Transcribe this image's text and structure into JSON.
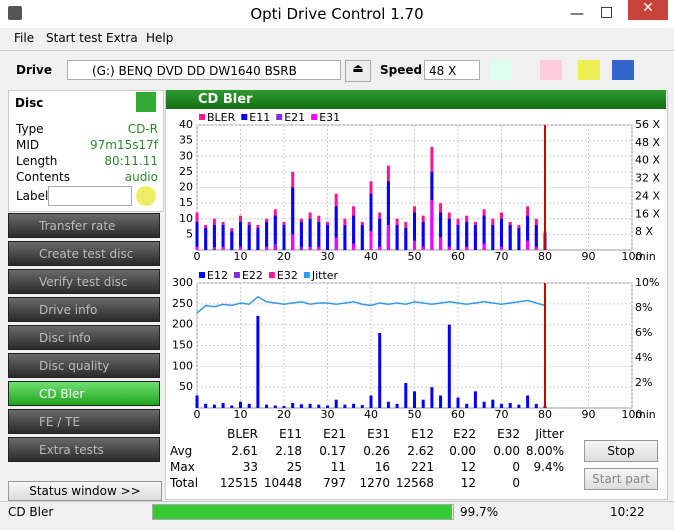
{
  "window": {
    "title": "Opti Drive Control 1.70"
  },
  "menu": [
    "File",
    "Start test",
    "Extra",
    "Help"
  ],
  "toolbar": {
    "drive_label": "Drive",
    "drive": "(G:)  BENQ DVD DD DW1640 BSRB",
    "speed_label": "Speed",
    "speed": "48 X"
  },
  "disc": {
    "title": "Disc",
    "fields": [
      [
        "Type",
        "CD-R"
      ],
      [
        "MID",
        "97m15s17f"
      ],
      [
        "Length",
        "80:11.11"
      ],
      [
        "Contents",
        "audio"
      ]
    ],
    "label_field": "Label"
  },
  "nav": [
    "Transfer rate",
    "Create test disc",
    "Verify test disc",
    "Drive info",
    "Disc info",
    "Disc quality",
    "CD Bler",
    "FE / TE",
    "Extra tests"
  ],
  "active_nav": 6,
  "status_window_button": "Status window >>",
  "panel_title": "CD Bler",
  "chart_data": [
    {
      "type": "bar",
      "x": [
        0,
        2,
        4,
        6,
        8,
        10,
        12,
        14,
        16,
        18,
        20,
        22,
        24,
        26,
        28,
        30,
        32,
        34,
        36,
        38,
        40,
        42,
        44,
        46,
        48,
        50,
        52,
        54,
        56,
        58,
        60,
        62,
        64,
        66,
        68,
        70,
        72,
        74,
        76,
        78,
        80
      ],
      "xlim": [
        0,
        100
      ],
      "xticks": [
        0,
        10,
        20,
        30,
        40,
        50,
        60,
        70,
        80,
        90,
        100
      ],
      "xlabel": "min",
      "ylim": [
        0,
        40
      ],
      "yticks": [
        5,
        10,
        15,
        20,
        25,
        30,
        35,
        40
      ],
      "y2lim": [
        0,
        56
      ],
      "y2ticks": [
        {
          "value": 8,
          "label": "8 X"
        },
        {
          "value": 16,
          "label": "16 X"
        },
        {
          "value": 24,
          "label": "24 X"
        },
        {
          "value": 32,
          "label": "32 X"
        },
        {
          "value": 40,
          "label": "40 X"
        },
        {
          "value": 48,
          "label": "48 X"
        },
        {
          "value": 56,
          "label": "56 X"
        }
      ],
      "grid": true,
      "progress_x": 80,
      "series": [
        {
          "name": "BLER",
          "color": "#ff1493",
          "values": [
            12,
            8,
            10,
            9,
            7,
            11,
            9,
            8,
            10,
            13,
            9,
            25,
            10,
            12,
            11,
            9,
            18,
            10,
            14,
            9,
            22,
            12,
            27,
            10,
            9,
            14,
            11,
            33,
            15,
            12,
            10,
            11,
            9,
            13,
            10,
            12,
            9,
            8,
            14,
            10,
            6
          ]
        },
        {
          "name": "E11",
          "color": "#0000ff",
          "values": [
            9,
            7,
            8,
            8,
            6,
            9,
            8,
            7,
            9,
            11,
            8,
            20,
            9,
            10,
            9,
            8,
            14,
            8,
            11,
            8,
            18,
            10,
            22,
            8,
            7,
            12,
            9,
            25,
            12,
            10,
            8,
            9,
            8,
            11,
            8,
            10,
            8,
            7,
            11,
            8,
            5
          ]
        },
        {
          "name": "E21",
          "color": "#8a2be2",
          "values": [
            1,
            0,
            1,
            0,
            0,
            1,
            0,
            0,
            1,
            2,
            0,
            4,
            1,
            1,
            0,
            0,
            3,
            0,
            2,
            0,
            5,
            1,
            6,
            0,
            0,
            2,
            1,
            11,
            3,
            1,
            0,
            1,
            0,
            2,
            0,
            1,
            0,
            0,
            2,
            1,
            0
          ]
        },
        {
          "name": "E31",
          "color": "#ff00ff",
          "values": [
            1,
            0,
            0,
            1,
            0,
            1,
            0,
            0,
            1,
            1,
            0,
            5,
            0,
            1,
            1,
            0,
            4,
            0,
            2,
            0,
            6,
            1,
            8,
            0,
            0,
            3,
            1,
            16,
            4,
            1,
            0,
            1,
            0,
            2,
            0,
            1,
            0,
            0,
            3,
            1,
            0
          ]
        }
      ]
    },
    {
      "type": "bar",
      "x": [
        0,
        2,
        4,
        6,
        8,
        10,
        12,
        14,
        16,
        18,
        20,
        22,
        24,
        26,
        28,
        30,
        32,
        34,
        36,
        38,
        40,
        42,
        44,
        46,
        48,
        50,
        52,
        54,
        56,
        58,
        60,
        62,
        64,
        66,
        68,
        70,
        72,
        74,
        76,
        78,
        80
      ],
      "xlim": [
        0,
        100
      ],
      "xticks": [
        0,
        10,
        20,
        30,
        40,
        50,
        60,
        70,
        80,
        90,
        100
      ],
      "xlabel": "min",
      "ylim": [
        0,
        300
      ],
      "yticks": [
        50,
        100,
        150,
        200,
        250,
        300
      ],
      "y2lim": [
        0,
        10
      ],
      "y2ticks": [
        {
          "value": 2,
          "label": "2%"
        },
        {
          "value": 4,
          "label": "4%"
        },
        {
          "value": 6,
          "label": "6%"
        },
        {
          "value": 8,
          "label": "8%"
        },
        {
          "value": 10,
          "label": "10%"
        }
      ],
      "grid": true,
      "progress_x": 80,
      "series": [
        {
          "name": "E12",
          "color": "#0000ff",
          "values": [
            30,
            10,
            8,
            12,
            6,
            15,
            10,
            221,
            8,
            6,
            5,
            12,
            9,
            10,
            8,
            6,
            20,
            8,
            10,
            7,
            30,
            180,
            15,
            10,
            60,
            40,
            20,
            50,
            30,
            200,
            25,
            10,
            40,
            15,
            20,
            10,
            12,
            8,
            30,
            10,
            5
          ]
        },
        {
          "name": "E22",
          "color": "#8a2be2",
          "values": [
            0,
            0,
            0,
            0,
            0,
            0,
            0,
            0,
            0,
            0,
            0,
            0,
            0,
            0,
            0,
            0,
            0,
            0,
            0,
            0,
            0,
            0,
            0,
            0,
            0,
            0,
            0,
            0,
            0,
            0,
            0,
            0,
            0,
            0,
            0,
            0,
            0,
            0,
            0,
            0,
            0
          ]
        },
        {
          "name": "E32",
          "color": "#ff1493",
          "values": [
            0,
            0,
            0,
            0,
            0,
            0,
            0,
            0,
            0,
            0,
            0,
            0,
            0,
            0,
            0,
            0,
            0,
            0,
            0,
            0,
            0,
            0,
            0,
            0,
            0,
            0,
            0,
            0,
            0,
            0,
            0,
            0,
            0,
            0,
            0,
            0,
            0,
            0,
            0,
            0,
            0
          ]
        },
        {
          "name": "Jitter",
          "color": "#3399ee",
          "type": "line",
          "axis": "y2",
          "values": [
            7.6,
            8.2,
            8.1,
            8.3,
            8.2,
            8.4,
            8.3,
            8.9,
            8.5,
            8.4,
            8.3,
            8.4,
            8.5,
            8.3,
            8.4,
            8.4,
            8.3,
            8.4,
            8.5,
            8.3,
            8.2,
            8.4,
            8.3,
            8.4,
            8.3,
            8.5,
            8.4,
            8.3,
            8.4,
            8.5,
            8.4,
            8.3,
            8.4,
            8.5,
            8.4,
            8.3,
            8.4,
            8.5,
            8.6,
            8.4,
            8.2
          ]
        }
      ]
    }
  ],
  "stats": {
    "columns": [
      "BLER",
      "E11",
      "E21",
      "E31",
      "E12",
      "E22",
      "E32",
      "Jitter"
    ],
    "rows": [
      {
        "label": "Avg",
        "values": [
          "2.61",
          "2.18",
          "0.17",
          "0.26",
          "2.62",
          "0.00",
          "0.00",
          "8.00%"
        ]
      },
      {
        "label": "Max",
        "values": [
          "33",
          "25",
          "11",
          "16",
          "221",
          "12",
          "0",
          "9.4%"
        ]
      },
      {
        "label": "Total",
        "values": [
          "12515",
          "10448",
          "797",
          "1270",
          "12568",
          "12",
          "0"
        ]
      }
    ]
  },
  "buttons": [
    "Stop",
    "Start part"
  ],
  "status_bar": {
    "mode": "CD Bler",
    "progress": {
      "value": 99.7,
      "label": "99.7%"
    },
    "time": "10:22"
  }
}
